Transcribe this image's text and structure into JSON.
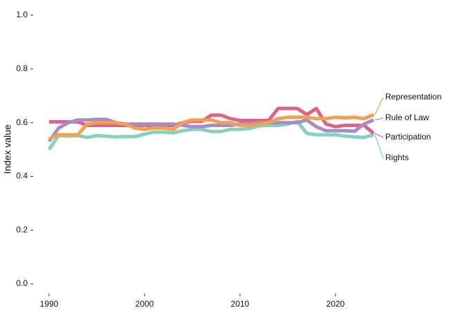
{
  "chart_data": {
    "type": "line",
    "y_label": "Index value",
    "x": [
      1990,
      1991,
      1992,
      1993,
      1994,
      1995,
      1996,
      1997,
      1998,
      1999,
      2000,
      2001,
      2002,
      2003,
      2004,
      2005,
      2006,
      2007,
      2008,
      2009,
      2010,
      2011,
      2012,
      2013,
      2014,
      2015,
      2016,
      2017,
      2018,
      2019,
      2020,
      2021,
      2022,
      2023,
      2024
    ],
    "series": [
      {
        "name": "Representation",
        "color": "#f0a050",
        "values": [
          0.54,
          0.555,
          0.555,
          0.555,
          0.595,
          0.6,
          0.6,
          0.6,
          0.595,
          0.58,
          0.575,
          0.58,
          0.58,
          0.575,
          0.6,
          0.61,
          0.61,
          0.61,
          0.6,
          0.6,
          0.59,
          0.59,
          0.595,
          0.6,
          0.615,
          0.62,
          0.62,
          0.62,
          0.615,
          0.615,
          0.62,
          0.618,
          0.62,
          0.615,
          0.63
        ]
      },
      {
        "name": "Rule of Law",
        "color": "#a88cc8",
        "values": [
          0.53,
          0.58,
          0.6,
          0.61,
          0.61,
          0.612,
          0.612,
          0.6,
          0.595,
          0.595,
          0.595,
          0.595,
          0.595,
          0.595,
          0.59,
          0.585,
          0.585,
          0.59,
          0.59,
          0.59,
          0.595,
          0.595,
          0.6,
          0.6,
          0.6,
          0.6,
          0.6,
          0.61,
          0.585,
          0.57,
          0.57,
          0.57,
          0.568,
          0.595,
          0.61
        ]
      },
      {
        "name": "Participation",
        "color": "#e06088",
        "values": [
          0.603,
          0.603,
          0.603,
          0.603,
          0.59,
          0.59,
          0.59,
          0.59,
          0.59,
          0.59,
          0.59,
          0.59,
          0.59,
          0.59,
          0.6,
          0.605,
          0.605,
          0.628,
          0.628,
          0.615,
          0.608,
          0.608,
          0.608,
          0.608,
          0.653,
          0.653,
          0.653,
          0.63,
          0.653,
          0.595,
          0.585,
          0.59,
          0.59,
          0.59,
          0.56
        ]
      },
      {
        "name": "Rights",
        "color": "#88d0c0",
        "values": [
          0.5,
          0.553,
          0.55,
          0.552,
          0.545,
          0.552,
          0.55,
          0.547,
          0.548,
          0.548,
          0.557,
          0.565,
          0.565,
          0.562,
          0.57,
          0.575,
          0.575,
          0.567,
          0.567,
          0.575,
          0.575,
          0.578,
          0.588,
          0.59,
          0.59,
          0.595,
          0.605,
          0.56,
          0.555,
          0.555,
          0.555,
          0.55,
          0.547,
          0.545,
          0.555
        ]
      }
    ],
    "xlim": [
      1988,
      2031
    ],
    "xticks": [
      1990,
      2000,
      2010,
      2020
    ],
    "ylim": [
      -0.03,
      1.0
    ],
    "yticks": [
      {
        "value": 0,
        "label": "0.0"
      },
      0.2,
      0.4,
      0.6,
      0.8,
      {
        "value": 1,
        "label": "1.0"
      }
    ],
    "grid": false
  }
}
